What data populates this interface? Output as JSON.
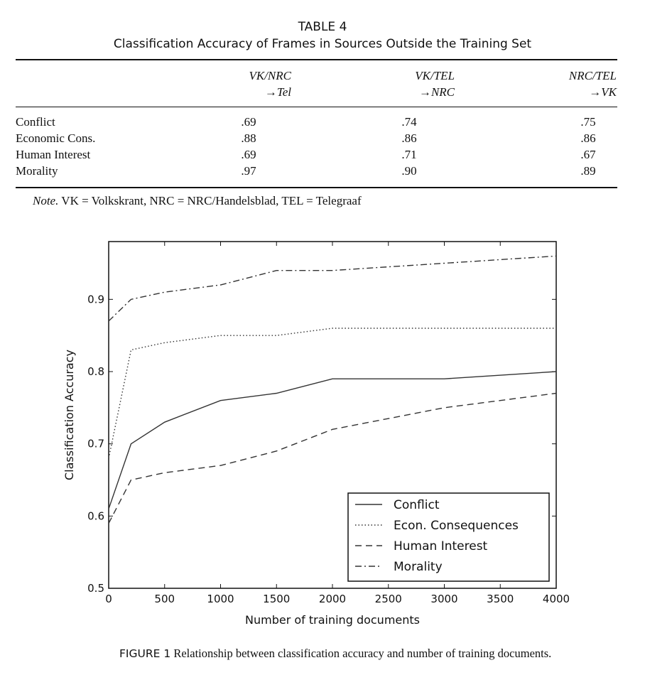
{
  "table": {
    "label": "TABLE 4",
    "title": "Classification Accuracy of Frames in Sources Outside the Training Set",
    "columns": [
      {
        "line1": "VK/NRC",
        "line2": "→Tel"
      },
      {
        "line1": "VK/TEL",
        "line2": "→NRC"
      },
      {
        "line1": "NRC/TEL",
        "line2": "→VK"
      }
    ],
    "rows": [
      {
        "label": "Conflict",
        "values": [
          ".69",
          ".74",
          ".75"
        ]
      },
      {
        "label": "Economic Cons.",
        "values": [
          ".88",
          ".86",
          ".86"
        ]
      },
      {
        "label": "Human Interest",
        "values": [
          ".69",
          ".71",
          ".67"
        ]
      },
      {
        "label": "Morality",
        "values": [
          ".97",
          ".90",
          ".89"
        ]
      }
    ],
    "note_label": "Note.",
    "note_text": " VK = Volkskrant, NRC = NRC/Handelsblad, TEL = Telegraaf"
  },
  "figure": {
    "caption_label": "FIGURE 1",
    "caption_text": "  Relationship between classification accuracy and number of training documents."
  },
  "chart_data": {
    "type": "line",
    "xlabel": "Number of training documents",
    "ylabel": "Classification Accuracy",
    "xlim": [
      0,
      4000
    ],
    "ylim": [
      0.5,
      0.98
    ],
    "xticks": [
      "0",
      "500",
      "1000",
      "1500",
      "2000",
      "2500",
      "3000",
      "3500",
      "4000"
    ],
    "yticks": [
      "0.5",
      "0.6",
      "0.7",
      "0.8",
      "0.9"
    ],
    "legend_position": "bottom-right",
    "grid": false,
    "x": [
      0,
      200,
      500,
      1000,
      1500,
      2000,
      3000,
      4000
    ],
    "series": [
      {
        "name": "Conflict",
        "style": "solid",
        "values": [
          0.61,
          0.7,
          0.73,
          0.76,
          0.77,
          0.79,
          0.79,
          0.8
        ]
      },
      {
        "name": "Econ. Consequences",
        "style": "dotted",
        "values": [
          0.68,
          0.83,
          0.84,
          0.85,
          0.85,
          0.86,
          0.86,
          0.86
        ]
      },
      {
        "name": "Human Interest",
        "style": "dashed",
        "values": [
          0.59,
          0.65,
          0.66,
          0.67,
          0.69,
          0.72,
          0.75,
          0.77
        ]
      },
      {
        "name": "Morality",
        "style": "dashdot",
        "values": [
          0.87,
          0.9,
          0.91,
          0.92,
          0.94,
          0.94,
          0.95,
          0.96
        ]
      }
    ],
    "line_color": "#333333"
  }
}
